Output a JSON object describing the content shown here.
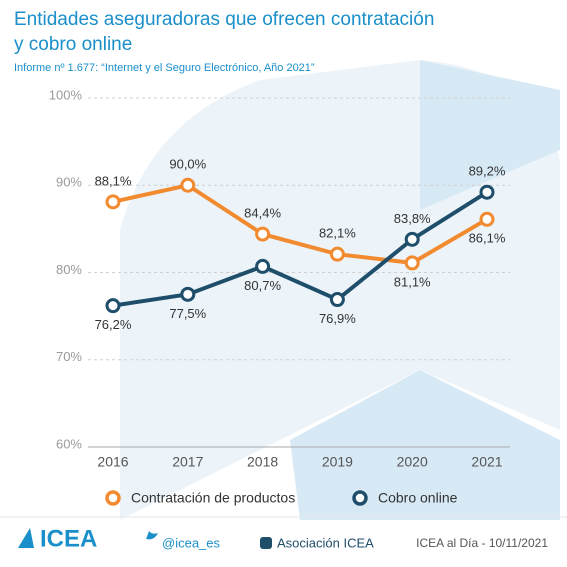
{
  "chart_data": {
    "type": "line",
    "title": "Entidades aseguradoras que ofrecen contratación",
    "title_line2": "y cobro online",
    "subtitle": "Informe nº 1.677: “Internet y el Seguro Electrónico, Año 2021”",
    "categories": [
      "2016",
      "2017",
      "2018",
      "2019",
      "2020",
      "2021"
    ],
    "series": [
      {
        "name": "Contratación de productos",
        "color": "#f28a30",
        "values": [
          88.1,
          90.0,
          84.4,
          82.1,
          81.1,
          86.1
        ],
        "value_labels": [
          "88,1%",
          "90,0%",
          "84,4%",
          "82,1%",
          "81,1%",
          "86,1%"
        ]
      },
      {
        "name": "Cobro online",
        "color": "#1f4e6b",
        "values": [
          76.2,
          77.5,
          80.7,
          76.9,
          83.8,
          89.2
        ],
        "value_labels": [
          "76,2%",
          "77,5%",
          "80,7%",
          "76,9%",
          "83,8%",
          "89,2%"
        ]
      }
    ],
    "ylim": [
      60,
      100
    ],
    "yticks": [
      {
        "value": 60,
        "label": "60%"
      },
      {
        "value": 70,
        "label": "70%"
      },
      {
        "value": 80,
        "label": "80%"
      },
      {
        "value": 90,
        "label": "90%"
      },
      {
        "value": 100,
        "label": "100%"
      }
    ],
    "grid": true
  },
  "footer": {
    "logo": "ICEA",
    "twitter": "@icea_es",
    "linkedin": "Asociación ICEA",
    "date": "ICEA al Día - 10/11/2021"
  }
}
